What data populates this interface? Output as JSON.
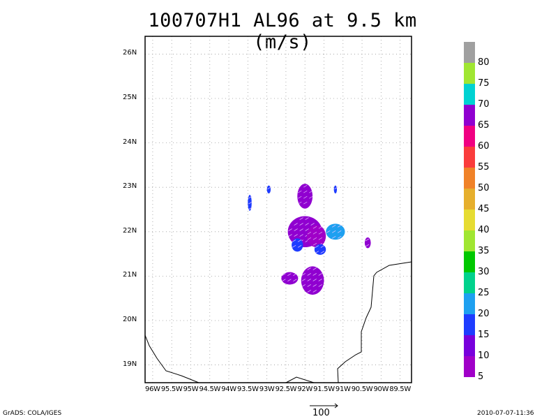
{
  "title": "100707H1 AL96 at 9.5 km (m/s)",
  "map": {
    "lat_labels": [
      "26N",
      "25N",
      "24N",
      "23N",
      "22N",
      "21N",
      "20N",
      "19N"
    ],
    "lon_labels": [
      "96W",
      "95.5W",
      "95W",
      "94.5W",
      "94W",
      "93.5W",
      "93W",
      "92.5W",
      "92W",
      "91.5W",
      "91W",
      "90.5W",
      "90W",
      "89.5W"
    ],
    "lat_range": [
      18.6,
      26.4
    ],
    "lon_range": [
      -96.2,
      -89.2
    ],
    "grid": true,
    "coastline_color": "#000000",
    "wind_blobs": [
      {
        "lon": -92.0,
        "lat": 22.8,
        "rx": 0.2,
        "ry": 0.28,
        "color": "#9000d0"
      },
      {
        "lon": -92.0,
        "lat": 22.0,
        "rx": 0.45,
        "ry": 0.35,
        "color": "#9000d0"
      },
      {
        "lon": -91.7,
        "lat": 21.9,
        "rx": 0.25,
        "ry": 0.25,
        "color": "#a000c8"
      },
      {
        "lon": -91.2,
        "lat": 22.0,
        "rx": 0.25,
        "ry": 0.18,
        "color": "#1ea0f0"
      },
      {
        "lon": -92.2,
        "lat": 21.7,
        "rx": 0.15,
        "ry": 0.15,
        "color": "#1e3cff"
      },
      {
        "lon": -91.6,
        "lat": 21.6,
        "rx": 0.15,
        "ry": 0.12,
        "color": "#1e3cff"
      },
      {
        "lon": -91.8,
        "lat": 20.9,
        "rx": 0.3,
        "ry": 0.32,
        "color": "#9000d0"
      },
      {
        "lon": -92.4,
        "lat": 20.95,
        "rx": 0.22,
        "ry": 0.14,
        "color": "#9000d0"
      },
      {
        "lon": -90.35,
        "lat": 21.75,
        "rx": 0.08,
        "ry": 0.12,
        "color": "#9000d0"
      },
      {
        "lon": -93.45,
        "lat": 22.65,
        "rx": 0.05,
        "ry": 0.18,
        "color": "#1e3cff"
      },
      {
        "lon": -92.95,
        "lat": 22.95,
        "rx": 0.05,
        "ry": 0.09,
        "color": "#1e3cff"
      },
      {
        "lon": -91.2,
        "lat": 22.95,
        "rx": 0.04,
        "ry": 0.09,
        "color": "#1e3cff"
      }
    ]
  },
  "colorbar": {
    "labels": [
      "80",
      "75",
      "70",
      "65",
      "60",
      "55",
      "50",
      "45",
      "40",
      "35",
      "30",
      "25",
      "20",
      "15",
      "10",
      "5"
    ],
    "colors": [
      "#a0a0a0",
      "#a0e632",
      "#00d2d2",
      "#9000d0",
      "#f00082",
      "#fa3c3c",
      "#f08228",
      "#e6af2d",
      "#e6dc32",
      "#a0e632",
      "#00c800",
      "#00d28c",
      "#1ea0f0",
      "#1e3cff",
      "#7800dc",
      "#a000c8"
    ]
  },
  "reference_vector": {
    "label": "100"
  },
  "footer": {
    "left": "GrADS: COLA/IGES",
    "right": "2010-07-07-11:36"
  }
}
